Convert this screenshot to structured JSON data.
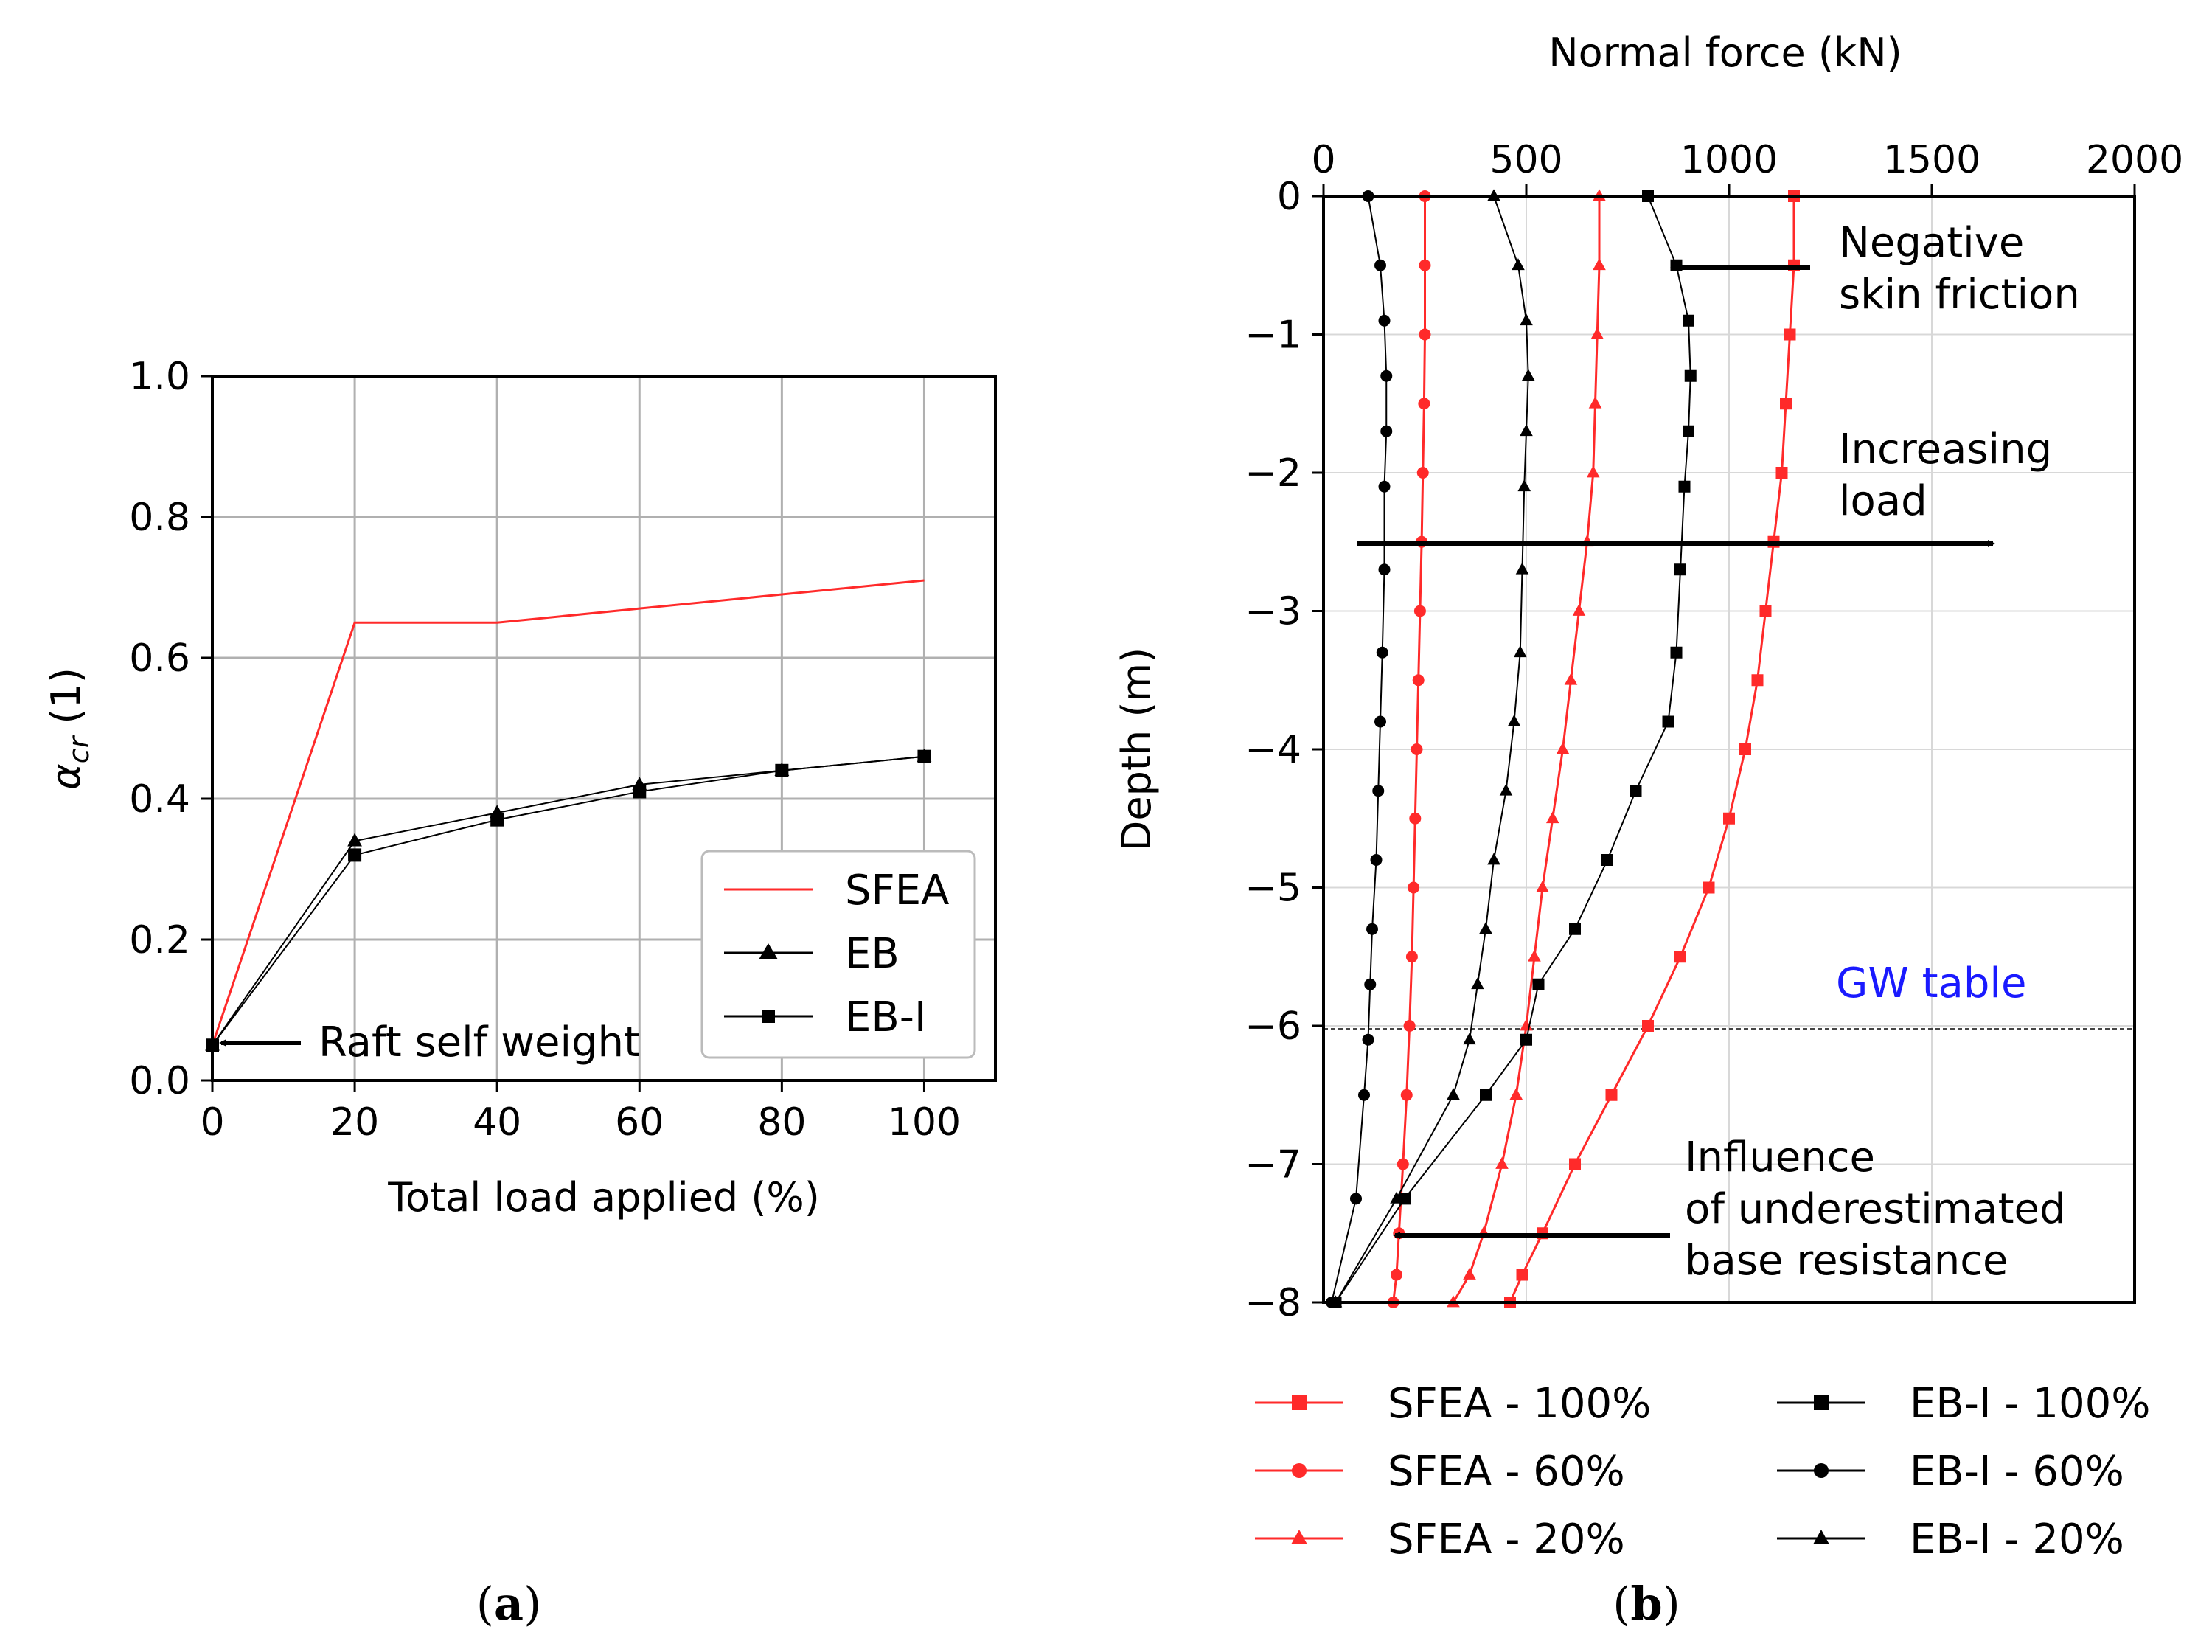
{
  "chart_data": [
    {
      "panel": "a",
      "panel_label": "a",
      "type": "line",
      "xlabel": "Total load applied (%)",
      "ylabel": "α_cr (1)",
      "xlim": [
        0,
        110
      ],
      "ylim": [
        0,
        1.0
      ],
      "xticks": [
        "0",
        "20",
        "40",
        "60",
        "80",
        "100"
      ],
      "yticks": [
        "0.0",
        "0.2",
        "0.4",
        "0.6",
        "0.8",
        "1.0"
      ],
      "grid": true,
      "legend_position": "lower-right",
      "series": [
        {
          "name": "SFEA",
          "color": "#ff2a2a",
          "marker": "none",
          "x": [
            0,
            20,
            40,
            60,
            80,
            100
          ],
          "y": [
            0.05,
            0.65,
            0.65,
            0.67,
            0.69,
            0.71
          ]
        },
        {
          "name": "EB",
          "color": "#000000",
          "marker": "triangle",
          "x": [
            0,
            20,
            40,
            60,
            80,
            100
          ],
          "y": [
            0.05,
            0.34,
            0.38,
            0.42,
            0.44,
            0.46
          ]
        },
        {
          "name": "EB-I",
          "color": "#000000",
          "marker": "square",
          "x": [
            0,
            20,
            40,
            60,
            80,
            100
          ],
          "y": [
            0.05,
            0.32,
            0.37,
            0.41,
            0.44,
            0.46
          ]
        }
      ],
      "annotations": [
        {
          "text": "Raft self weight",
          "x": 0,
          "y": 0.05
        }
      ]
    },
    {
      "panel": "b",
      "panel_label": "b",
      "type": "line",
      "xlabel": "Normal force (kN)",
      "ylabel": "Depth (m)",
      "xlim": [
        0,
        2000
      ],
      "ylim": [
        -8,
        0
      ],
      "xticks": [
        "0",
        "500",
        "1000",
        "1500",
        "2000"
      ],
      "yticks": [
        "0",
        "−1",
        "−2",
        "−3",
        "−4",
        "−5",
        "−6",
        "−7",
        "−8"
      ],
      "grid": true,
      "gw_table_depth": -6,
      "gw_table_label": "GW table",
      "series": [
        {
          "name": "SFEA - 100%",
          "color": "#ff2a2a",
          "marker": "square",
          "x": [
            1160,
            1160,
            1150,
            1140,
            1130,
            1110,
            1090,
            1070,
            1040,
            1000,
            950,
            880,
            800,
            710,
            620,
            540,
            490,
            460
          ],
          "y": [
            0,
            -0.5,
            -1,
            -1.5,
            -2,
            -2.5,
            -3,
            -3.5,
            -4,
            -4.5,
            -5,
            -5.5,
            -6,
            -6.5,
            -7,
            -7.5,
            -7.8,
            -8
          ]
        },
        {
          "name": "SFEA - 60%",
          "color": "#ff2a2a",
          "marker": "circle",
          "x": [
            250,
            250,
            250,
            248,
            245,
            242,
            238,
            234,
            230,
            226,
            222,
            218,
            212,
            205,
            196,
            186,
            180,
            172
          ],
          "y": [
            0,
            -0.5,
            -1,
            -1.5,
            -2,
            -2.5,
            -3,
            -3.5,
            -4,
            -4.5,
            -5,
            -5.5,
            -6,
            -6.5,
            -7,
            -7.5,
            -7.8,
            -8
          ]
        },
        {
          "name": "SFEA - 20%",
          "color": "#ff2a2a",
          "marker": "triangle",
          "x": [
            680,
            680,
            675,
            670,
            665,
            650,
            630,
            610,
            590,
            565,
            540,
            520,
            500,
            475,
            440,
            395,
            360,
            320
          ],
          "y": [
            0,
            -0.5,
            -1,
            -1.5,
            -2,
            -2.5,
            -3,
            -3.5,
            -4,
            -4.5,
            -5,
            -5.5,
            -6,
            -6.5,
            -7,
            -7.5,
            -7.8,
            -8
          ]
        },
        {
          "name": "EB-I - 100%",
          "color": "#000000",
          "marker": "square",
          "x": [
            800,
            870,
            900,
            905,
            900,
            890,
            880,
            870,
            850,
            770,
            700,
            620,
            530,
            500,
            400,
            200,
            30
          ],
          "y": [
            0,
            -0.5,
            -0.9,
            -1.3,
            -1.7,
            -2.1,
            -2.7,
            -3.3,
            -3.8,
            -4.3,
            -4.8,
            -5.3,
            -5.7,
            -6.1,
            -6.5,
            -7.25,
            -8
          ]
        },
        {
          "name": "EB-I - 60%",
          "color": "#000000",
          "marker": "circle",
          "x": [
            110,
            140,
            150,
            155,
            155,
            150,
            150,
            145,
            140,
            135,
            130,
            120,
            115,
            110,
            100,
            80,
            20
          ],
          "y": [
            0,
            -0.5,
            -0.9,
            -1.3,
            -1.7,
            -2.1,
            -2.7,
            -3.3,
            -3.8,
            -4.3,
            -4.8,
            -5.3,
            -5.7,
            -6.1,
            -6.5,
            -7.25,
            -8
          ]
        },
        {
          "name": "EB-I - 20%",
          "color": "#000000",
          "marker": "triangle",
          "x": [
            420,
            480,
            500,
            505,
            500,
            495,
            490,
            485,
            470,
            450,
            420,
            400,
            380,
            360,
            320,
            180,
            30
          ],
          "y": [
            0,
            -0.5,
            -0.9,
            -1.3,
            -1.7,
            -2.1,
            -2.7,
            -3.3,
            -3.8,
            -4.3,
            -4.8,
            -5.3,
            -5.7,
            -6.1,
            -6.5,
            -7.25,
            -8
          ]
        }
      ],
      "annotations": [
        {
          "text": [
            "Negative",
            "skin friction"
          ]
        },
        {
          "text": [
            "Increasing",
            "load"
          ]
        },
        {
          "text": [
            "Influence",
            "of underestimated",
            "base resistance"
          ]
        }
      ]
    }
  ]
}
